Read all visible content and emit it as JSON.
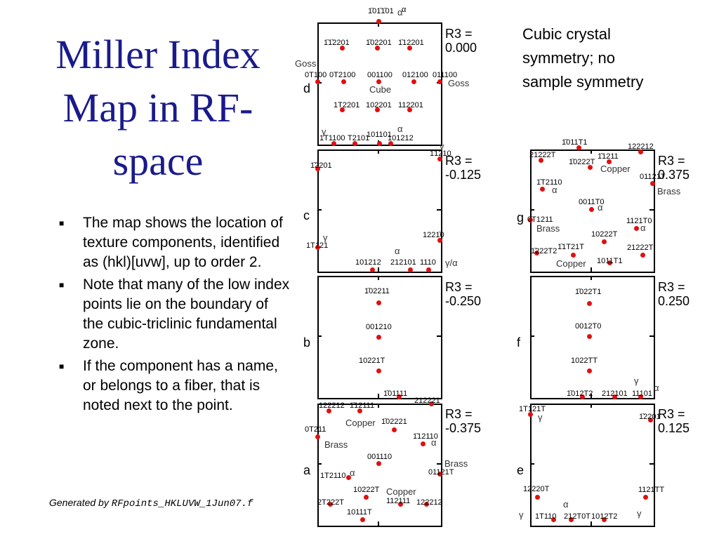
{
  "title": {
    "line1": "Miller Index",
    "line2": "Map in RF-",
    "line3": "space"
  },
  "bullets": [
    "The map shows the location of texture components, identified as (hkl)[uvw], up to order 2.",
    "Note that many of the low index points lie on the boundary of the cubic-triclinic fundamental zone.",
    "If the component has a name, or belongs to a fiber, that is noted next to the point."
  ],
  "bullet_marker": "■",
  "generated_by": {
    "prefix": "Generated by ",
    "file": "RFpoints_HKLUVW_1Jun07.f"
  },
  "note": "Cubic crystal symmetry; no sample symmetry",
  "panels": {
    "d": {
      "letter": "d",
      "r3_label": "R3 =",
      "r3_value": "0.000",
      "points": [
        {
          "label": "1̄01̄1̄01",
          "annot": "α"
        },
        {
          "label": "1̄1̄2201"
        },
        {
          "label": "1̄02201"
        },
        {
          "label": "1̄12201"
        },
        {
          "label": "0T100"
        },
        {
          "label": "0T2100"
        },
        {
          "label": "001100"
        },
        {
          "label": "012100"
        },
        {
          "label": "011100"
        },
        {
          "label": "1T2201"
        },
        {
          "label": "102201"
        },
        {
          "label": "112201"
        },
        {
          "label": "1T1100"
        },
        {
          "label": "T2101"
        },
        {
          "label": "101101"
        },
        {
          "label": "101212"
        }
      ],
      "names": [
        "Goss",
        "Cube",
        "Goss",
        "γ",
        "α",
        "α"
      ]
    },
    "c": {
      "letter": "c",
      "r3_label": "R3 =",
      "r3_value": "-0.125",
      "points": [
        {
          "label": "1̄1210"
        },
        {
          "label": "1̄2201"
        },
        {
          "label": "1221̄0"
        },
        {
          "label": "1T121"
        },
        {
          "label": "101212"
        },
        {
          "label": "212101"
        },
        {
          "label": "1110"
        }
      ],
      "names": [
        "γ",
        "γ",
        "α",
        "γ/α"
      ]
    },
    "b": {
      "letter": "b",
      "r3_label": "R3 =",
      "r3_value": "-0.250",
      "points": [
        {
          "label": "1̄02211"
        },
        {
          "label": "001210"
        },
        {
          "label": "10221T"
        },
        {
          "label": "1̄01111"
        }
      ]
    },
    "a": {
      "letter": "a",
      "r3_label": "R3 =",
      "r3_value": "-0.375",
      "points": [
        {
          "label": "122212"
        },
        {
          "label": "1̄12111"
        },
        {
          "label": "212221"
        },
        {
          "label": "1̄02221"
        },
        {
          "label": "0T211"
        },
        {
          "label": "1̄12110"
        },
        {
          "label": "001110"
        },
        {
          "label": "1T2110"
        },
        {
          "label": "01121T"
        },
        {
          "label": "10222T"
        },
        {
          "label": "112111"
        },
        {
          "label": "2T222T"
        },
        {
          "label": "122212"
        },
        {
          "label": "10111T"
        }
      ],
      "names": [
        "Copper",
        "Brass",
        "α",
        "Brass",
        "α",
        "Copper"
      ]
    },
    "g": {
      "letter": "g",
      "r3_label": "R3 =",
      "r3_value": "0.375",
      "points": [
        {
          "label": "1̄011T1"
        },
        {
          "label": "21222T"
        },
        {
          "label": "1̄1211"
        },
        {
          "label": "122212"
        },
        {
          "label": "1̄0222T"
        },
        {
          "label": "1̄T2110"
        },
        {
          "label": "01121T"
        },
        {
          "label": "0011T0"
        },
        {
          "label": "0T1211"
        },
        {
          "label": "1121T0"
        },
        {
          "label": "10222T"
        },
        {
          "label": "1̄222T2"
        },
        {
          "label": "1̄1T21T"
        },
        {
          "label": "21222T"
        },
        {
          "label": "1011T1"
        }
      ],
      "names": [
        "Copper",
        "α",
        "Brass",
        "α",
        "Brass",
        "α",
        "Copper"
      ]
    },
    "f": {
      "letter": "f",
      "r3_label": "R3 =",
      "r3_value": "0.250",
      "points": [
        {
          "label": "1̄022T1"
        },
        {
          "label": "0012T0"
        },
        {
          "label": "1022TT"
        },
        {
          "label": "1̄012T2"
        },
        {
          "label": "212101"
        },
        {
          "label": "11101"
        }
      ],
      "names": [
        "γ",
        "α"
      ]
    },
    "e": {
      "letter": "e",
      "r3_label": "R3 =",
      "r3_value": "0.125",
      "points": [
        {
          "label": "1T121T"
        },
        {
          "label": "1̄2201"
        },
        {
          "label": "12220T"
        },
        {
          "label": "1121TT"
        },
        {
          "label": "1T110"
        },
        {
          "label": "212T0T"
        },
        {
          "label": "1012T2"
        }
      ],
      "names": [
        "γ",
        "γ",
        "γ",
        "α"
      ]
    }
  }
}
